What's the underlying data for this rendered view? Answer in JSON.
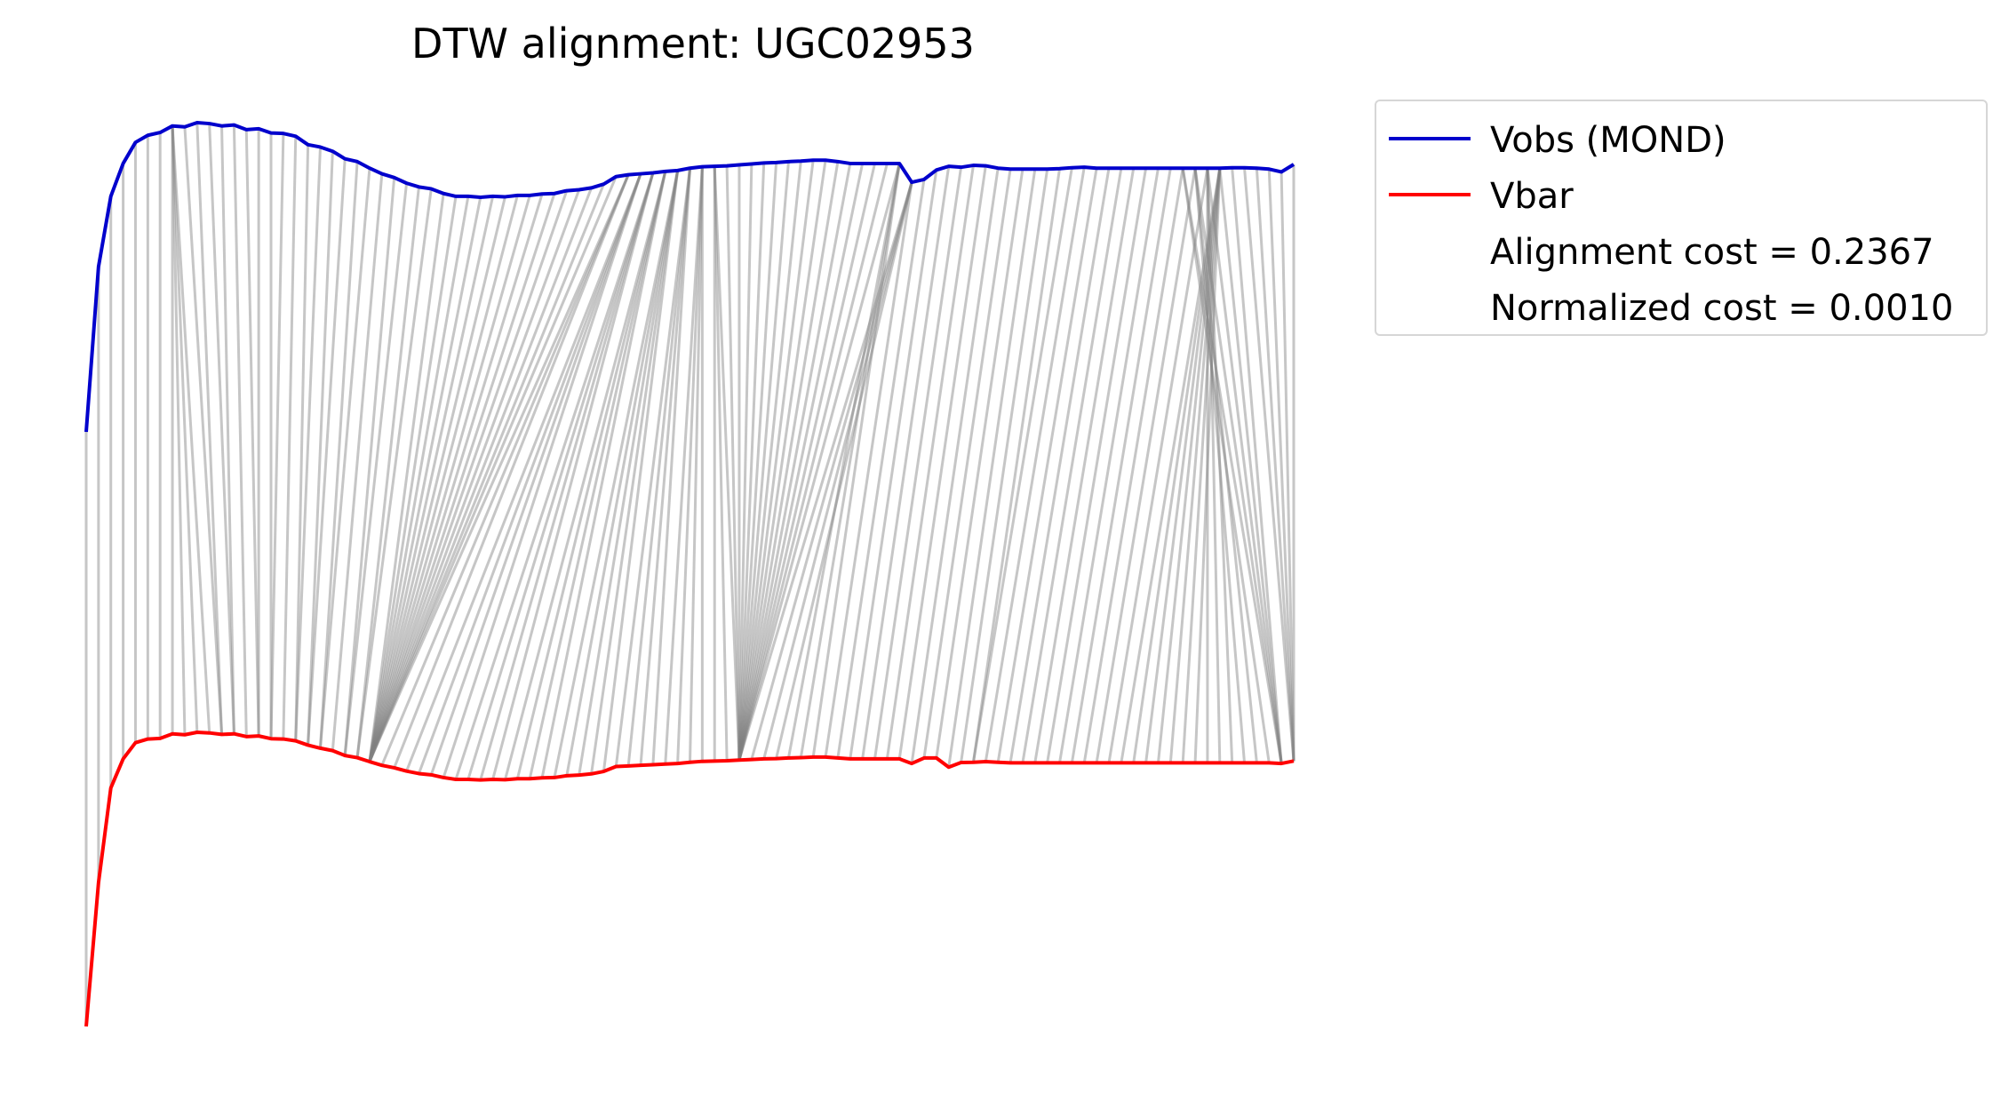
{
  "chart_data": {
    "type": "line",
    "title": "DTW alignment: UGC02953",
    "xlabel": "",
    "ylabel": "",
    "axes_visible": false,
    "grid": false,
    "legend_placement": "outside-top-right",
    "series": [
      {
        "name": "Vobs (MOND)",
        "color": "#0000cc",
        "values": [
          0.468,
          0.82,
          0.97,
          1.04,
          1.085,
          1.1,
          1.106,
          1.12,
          1.118,
          1.127,
          1.125,
          1.12,
          1.122,
          1.112,
          1.114,
          1.105,
          1.104,
          1.098,
          1.08,
          1.075,
          1.066,
          1.05,
          1.044,
          1.03,
          1.018,
          1.01,
          0.998,
          0.99,
          0.986,
          0.976,
          0.97,
          0.97,
          0.968,
          0.97,
          0.969,
          0.972,
          0.972,
          0.975,
          0.976,
          0.982,
          0.984,
          0.988,
          0.996,
          1.012,
          1.016,
          1.018,
          1.02,
          1.023,
          1.025,
          1.03,
          1.033,
          1.034,
          1.035,
          1.037,
          1.039,
          1.041,
          1.042,
          1.044,
          1.045,
          1.047,
          1.047,
          1.044,
          1.04,
          1.04,
          1.04,
          1.04,
          1.04,
          1.0,
          1.006,
          1.026,
          1.034,
          1.032,
          1.036,
          1.035,
          1.03,
          1.028,
          1.028,
          1.028,
          1.028,
          1.029,
          1.031,
          1.032,
          1.03,
          1.03,
          1.03,
          1.03,
          1.03,
          1.03,
          1.03,
          1.03,
          1.03,
          1.03,
          1.03,
          1.031,
          1.031,
          1.03,
          1.028,
          1.022,
          1.038
        ]
      },
      {
        "name": "Vbar",
        "color": "#ff0000",
        "values": [
          0.0,
          0.47,
          0.78,
          0.875,
          0.928,
          0.94,
          0.942,
          0.957,
          0.954,
          0.962,
          0.96,
          0.955,
          0.957,
          0.948,
          0.95,
          0.941,
          0.94,
          0.934,
          0.92,
          0.91,
          0.902,
          0.886,
          0.879,
          0.866,
          0.854,
          0.846,
          0.835,
          0.827,
          0.823,
          0.814,
          0.808,
          0.808,
          0.806,
          0.808,
          0.807,
          0.81,
          0.81,
          0.813,
          0.814,
          0.82,
          0.822,
          0.826,
          0.834,
          0.85,
          0.852,
          0.854,
          0.856,
          0.858,
          0.86,
          0.864,
          0.867,
          0.868,
          0.869,
          0.871,
          0.873,
          0.875,
          0.876,
          0.878,
          0.879,
          0.881,
          0.881,
          0.878,
          0.875,
          0.875,
          0.875,
          0.875,
          0.875,
          0.86,
          0.878,
          0.878,
          0.848,
          0.863,
          0.864,
          0.866,
          0.864,
          0.862,
          0.862,
          0.862,
          0.862,
          0.862,
          0.862,
          0.862,
          0.862,
          0.862,
          0.862,
          0.862,
          0.862,
          0.862,
          0.862,
          0.862,
          0.862,
          0.862,
          0.862,
          0.862,
          0.862,
          0.862,
          0.862,
          0.86,
          0.868
        ]
      }
    ],
    "alignment_lines_color": "#808080",
    "warp_path_anchors": [
      [
        0,
        0
      ],
      [
        7,
        7
      ],
      [
        7,
        10
      ],
      [
        29,
        23
      ],
      [
        44,
        23
      ],
      [
        51,
        53
      ],
      [
        67,
        53
      ],
      [
        66,
        59
      ],
      [
        92,
        84
      ],
      [
        92,
        89
      ],
      [
        89,
        97
      ],
      [
        98,
        98
      ]
    ],
    "legend": [
      {
        "label": "Vobs (MOND)",
        "color": "#0000cc",
        "swatch": true
      },
      {
        "label": "Vbar",
        "color": "#ff0000",
        "swatch": true
      },
      {
        "label": "Alignment cost = 0.2367",
        "swatch": false
      },
      {
        "label": "Normalized cost = 0.0010",
        "swatch": false
      }
    ]
  }
}
